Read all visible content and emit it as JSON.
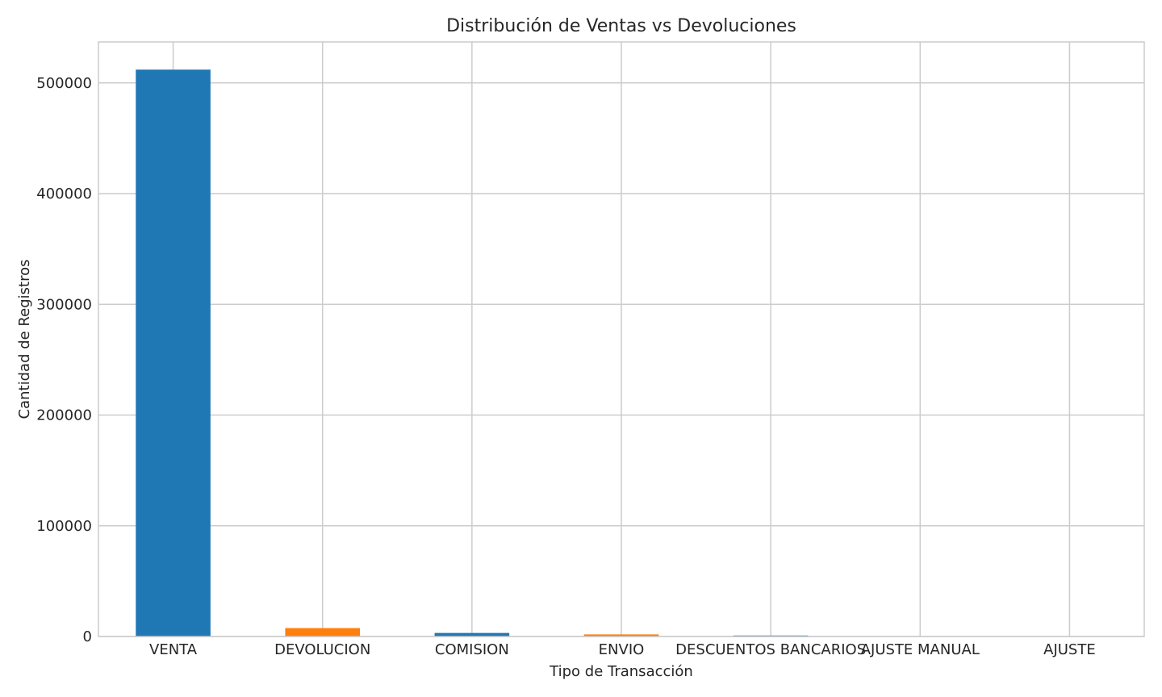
{
  "chart_data": {
    "type": "bar",
    "title": "Distribución de Ventas vs Devoluciones",
    "xlabel": "Tipo de Transacción",
    "ylabel": "Cantidad de Registros",
    "categories": [
      "VENTA",
      "DEVOLUCION",
      "COMISION",
      "ENVIO",
      "DESCUENTOS BANCARIOS",
      "AJUSTE MANUAL",
      "AJUSTE"
    ],
    "values": [
      512000,
      7600,
      3200,
      1900,
      900,
      150,
      60
    ],
    "colors": [
      "#1f77b4",
      "#ff7f0e",
      "#1f77b4",
      "#ff7f0e",
      "#1f77b4",
      "#ff7f0e",
      "#1f77b4"
    ],
    "ylim": [
      0,
      537000
    ],
    "yticks": [
      0,
      100000,
      200000,
      300000,
      400000,
      500000
    ],
    "grid": true,
    "style": {
      "grid_color": "#cccccc",
      "frame_color": "#cccccc",
      "text_color": "#262626"
    }
  }
}
